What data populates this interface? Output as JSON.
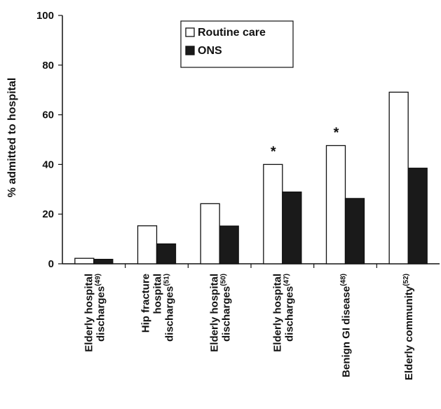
{
  "chart_data": {
    "type": "bar",
    "ylabel": "% admitted to hospital",
    "xlabel": "",
    "ylim": [
      0,
      100
    ],
    "yticks": [
      "0",
      "20",
      "40",
      "60",
      "80",
      "100"
    ],
    "grid": false,
    "legend_position": "top-center",
    "categories": [
      [
        "Elderly hospital",
        "discharges",
        "(49)"
      ],
      [
        "Hip fracture",
        "hospital",
        "discharges",
        "(51)"
      ],
      [
        "Elderly hospital",
        "discharges",
        "(50)"
      ],
      [
        "Elderly hospital",
        "discharges",
        "(47)"
      ],
      [
        "Benign GI disease",
        "",
        "(48)"
      ],
      [
        "Elderly community",
        "",
        "(52)"
      ]
    ],
    "series": [
      {
        "name": "Routine care",
        "color": "#ffffff",
        "values": [
          2.2,
          15.3,
          24.2,
          40.0,
          47.6,
          69.1
        ]
      },
      {
        "name": "ONS",
        "color": "#1a1a1a",
        "values": [
          1.8,
          8.0,
          15.2,
          28.9,
          26.3,
          38.5
        ]
      }
    ],
    "annotations": [
      {
        "category_index": 3,
        "text": "*"
      },
      {
        "category_index": 4,
        "text": "*"
      }
    ]
  }
}
